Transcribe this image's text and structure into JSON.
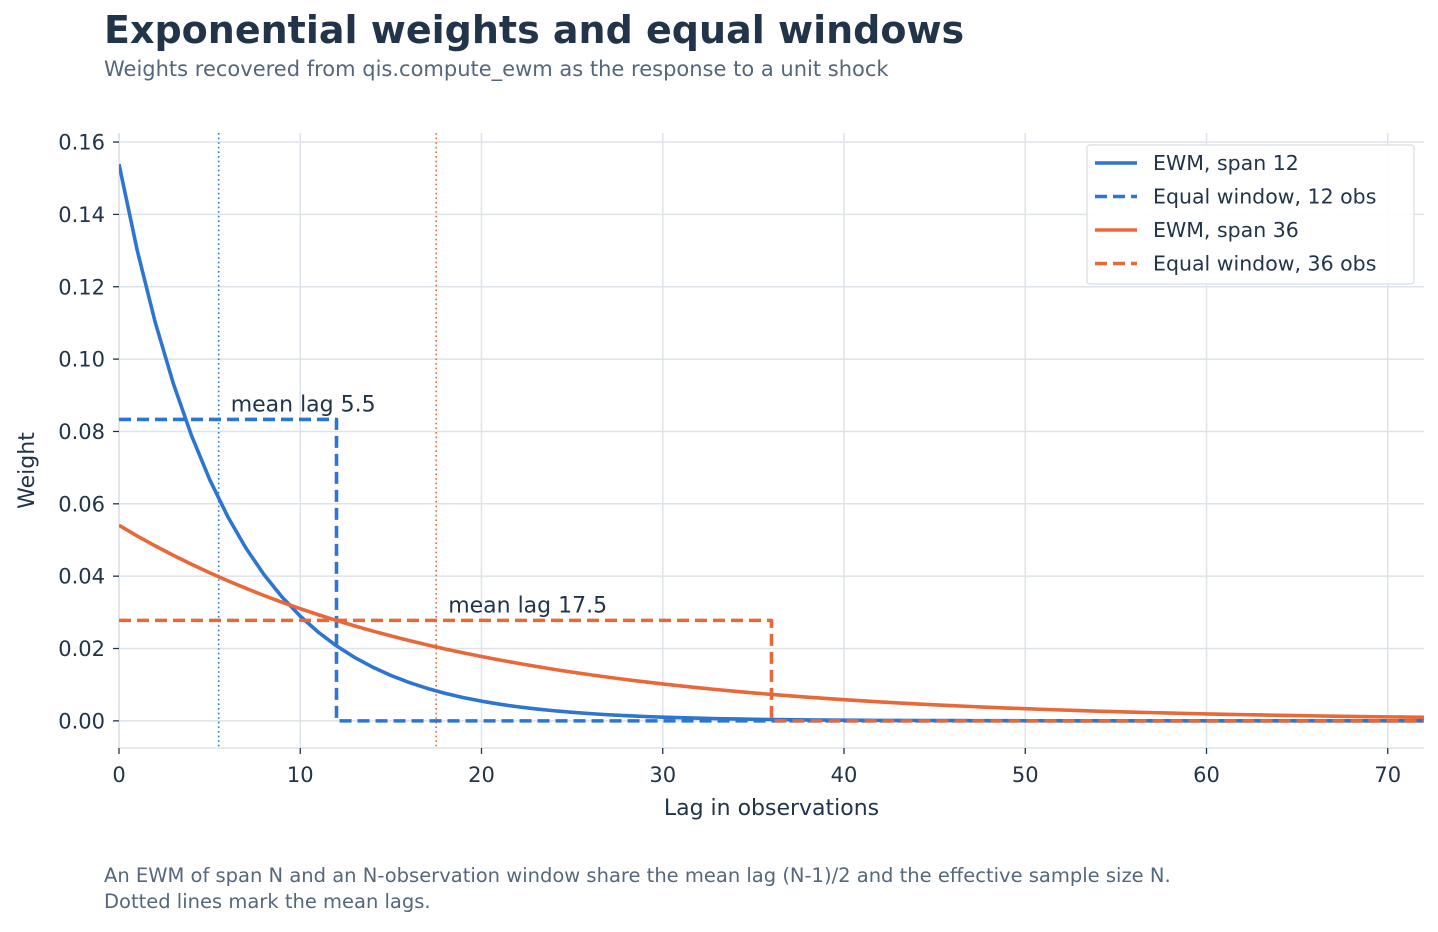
{
  "header": {
    "title": "Exponential weights and equal windows",
    "subtitle": "Weights recovered from qis.compute_ewm as the response to a unit shock"
  },
  "footnote": {
    "line1": "An EWM of span N and an N-observation window share the mean lag (N-1)/2 and the effective sample size N.",
    "line2": "Dotted lines mark the mean lags."
  },
  "chart_data": {
    "type": "line",
    "xlabel": "Lag in observations",
    "ylabel": "Weight",
    "xlim": [
      0,
      72
    ],
    "ylim": [
      -0.0075,
      0.1625
    ],
    "xticks": [
      0,
      10,
      20,
      30,
      40,
      50,
      60,
      70
    ],
    "xtick_labels": [
      "0",
      "10",
      "20",
      "30",
      "40",
      "50",
      "60",
      "70"
    ],
    "yticks": [
      0.0,
      0.02,
      0.04,
      0.06,
      0.08,
      0.1,
      0.12,
      0.14,
      0.16
    ],
    "ytick_labels": [
      "0.00",
      "0.02",
      "0.04",
      "0.06",
      "0.08",
      "0.10",
      "0.12",
      "0.14",
      "0.16"
    ],
    "grid": true,
    "legend_position": "top-right",
    "series": [
      {
        "name": "EWM, span 12",
        "kind": "ewm",
        "span": 12,
        "color": "#2e75d0",
        "style": "solid"
      },
      {
        "name": "Equal window, 12 obs",
        "kind": "window",
        "n": 12,
        "color": "#2e75d0",
        "style": "dashed"
      },
      {
        "name": "EWM, span 36",
        "kind": "ewm",
        "span": 36,
        "color": "#e8683a",
        "style": "solid"
      },
      {
        "name": "Equal window, 36 obs",
        "kind": "window",
        "n": 36,
        "color": "#e8683a",
        "style": "dashed"
      }
    ],
    "mean_lags": [
      {
        "x": 5.5,
        "label": "mean lag 5.5",
        "label_y": 0.0855,
        "color": "#2e75d0"
      },
      {
        "x": 17.5,
        "label": "mean lag 17.5",
        "label_y": 0.03,
        "color": "#e8683a"
      }
    ]
  }
}
